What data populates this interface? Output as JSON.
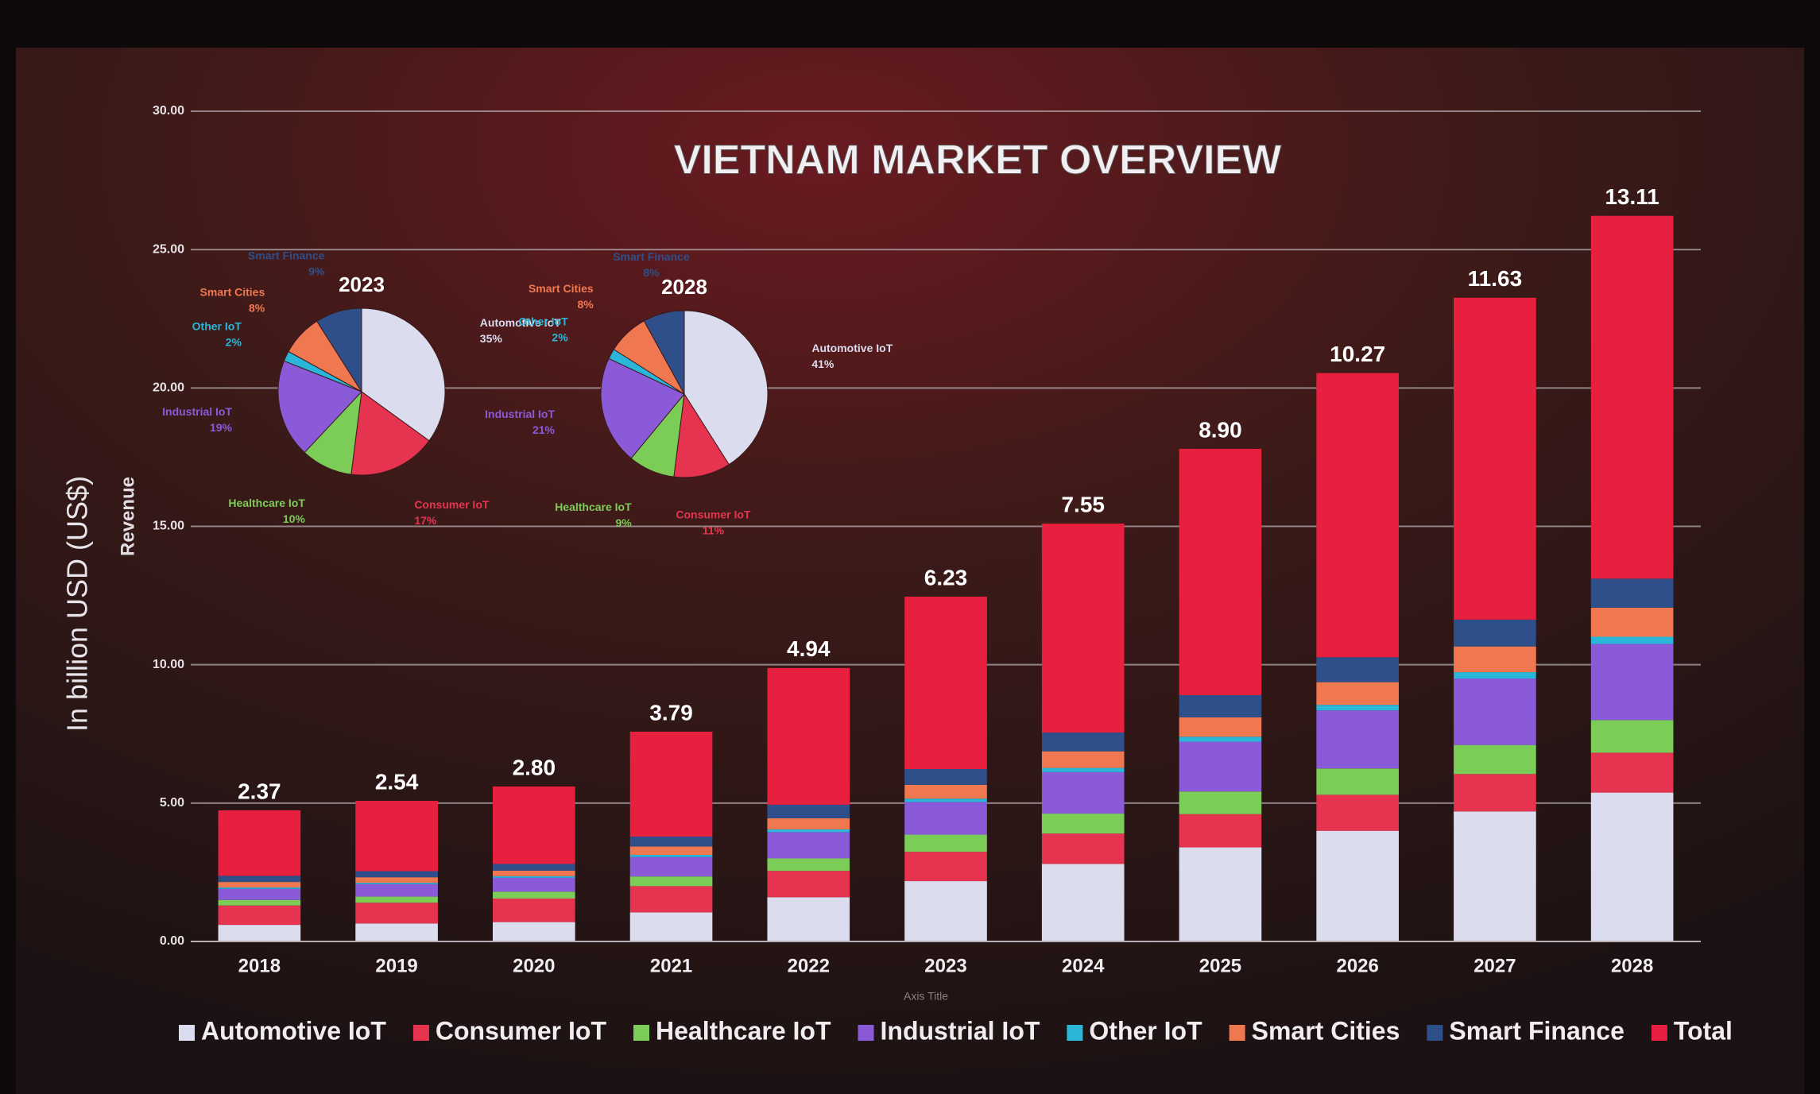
{
  "chart_data": [
    {
      "type": "bar",
      "title": "VIETNAM MARKET OVERVIEW",
      "y_label": "In billion USD (US$)",
      "y_label_2": "Revenue",
      "x_label": "Axis Title",
      "categories": [
        "2018",
        "2019",
        "2020",
        "2021",
        "2022",
        "2023",
        "2024",
        "2025",
        "2026",
        "2027",
        "2028"
      ],
      "series": [
        {
          "name": "Automotive IoT",
          "color": "#dcdcef",
          "values": [
            0.6,
            0.65,
            0.7,
            1.05,
            1.6,
            2.18,
            2.8,
            3.4,
            4.0,
            4.7,
            5.38
          ]
        },
        {
          "name": "Consumer IoT",
          "color": "#e63450",
          "values": [
            0.7,
            0.75,
            0.85,
            0.95,
            0.95,
            1.06,
            1.1,
            1.2,
            1.3,
            1.35,
            1.44
          ]
        },
        {
          "name": "Healthcare IoT",
          "color": "#7ccc58",
          "values": [
            0.2,
            0.22,
            0.25,
            0.35,
            0.45,
            0.62,
            0.72,
            0.82,
            0.95,
            1.05,
            1.18
          ]
        },
        {
          "name": "Industrial IoT",
          "color": "#8a5ad8",
          "values": [
            0.4,
            0.45,
            0.5,
            0.7,
            0.95,
            1.18,
            1.5,
            1.8,
            2.1,
            2.4,
            2.75
          ]
        },
        {
          "name": "Other IoT",
          "color": "#2ab6d8",
          "values": [
            0.05,
            0.05,
            0.06,
            0.08,
            0.1,
            0.12,
            0.15,
            0.18,
            0.2,
            0.23,
            0.26
          ]
        },
        {
          "name": "Smart Cities",
          "color": "#f07850",
          "values": [
            0.2,
            0.2,
            0.2,
            0.3,
            0.4,
            0.5,
            0.6,
            0.7,
            0.82,
            0.93,
            1.05
          ]
        },
        {
          "name": "Smart Finance",
          "color": "#2e4f8a",
          "values": [
            0.22,
            0.22,
            0.24,
            0.36,
            0.49,
            0.57,
            0.68,
            0.8,
            0.9,
            0.97,
            1.05
          ]
        },
        {
          "name": "Total",
          "color": "#e8203f",
          "values": [
            2.37,
            2.54,
            2.8,
            3.79,
            4.94,
            6.23,
            7.55,
            8.9,
            10.27,
            11.63,
            13.11
          ],
          "value_labels": [
            "2.37",
            "2.54",
            "2.80",
            "3.79",
            "4.94",
            "6.23",
            "7.55",
            "8.90",
            "10.27",
            "11.63",
            "13.11"
          ]
        }
      ],
      "ylim": [
        0,
        30
      ],
      "yticks": [
        {
          "value": 0,
          "label": "0.00"
        },
        {
          "value": 5,
          "label": "5.00"
        },
        {
          "value": 10,
          "label": "10.00"
        },
        {
          "value": 15,
          "label": "15.00"
        },
        {
          "value": 20,
          "label": "20.00"
        },
        {
          "value": 25,
          "label": "25.00"
        },
        {
          "value": 30,
          "label": "30.00"
        }
      ],
      "grid": true,
      "legend": "bottom"
    },
    {
      "type": "pie",
      "title": "2023",
      "categories": [
        "Automotive IoT",
        "Consumer IoT",
        "Healthcare IoT",
        "Industrial IoT",
        "Other IoT",
        "Smart Cities",
        "Smart Finance"
      ],
      "values": [
        35,
        17,
        10,
        19,
        2,
        8,
        9
      ],
      "value_labels": [
        "35%",
        "17%",
        "10%",
        "19%",
        "2%",
        "8%",
        "9%"
      ],
      "colors": [
        "#dcdcef",
        "#e63450",
        "#7ccc58",
        "#8a5ad8",
        "#2ab6d8",
        "#f07850",
        "#2e4f8a"
      ]
    },
    {
      "type": "pie",
      "title": "2028",
      "categories": [
        "Automotive IoT",
        "Consumer IoT",
        "Healthcare IoT",
        "Industrial IoT",
        "Other IoT",
        "Smart Cities",
        "Smart Finance"
      ],
      "values": [
        41,
        11,
        9,
        21,
        2,
        8,
        8
      ],
      "value_labels": [
        "41%",
        "11%",
        "9%",
        "21%",
        "2%",
        "8%",
        "8%"
      ],
      "colors": [
        "#dcdcef",
        "#e63450",
        "#7ccc58",
        "#8a5ad8",
        "#2ab6d8",
        "#f07850",
        "#2e4f8a"
      ]
    }
  ]
}
